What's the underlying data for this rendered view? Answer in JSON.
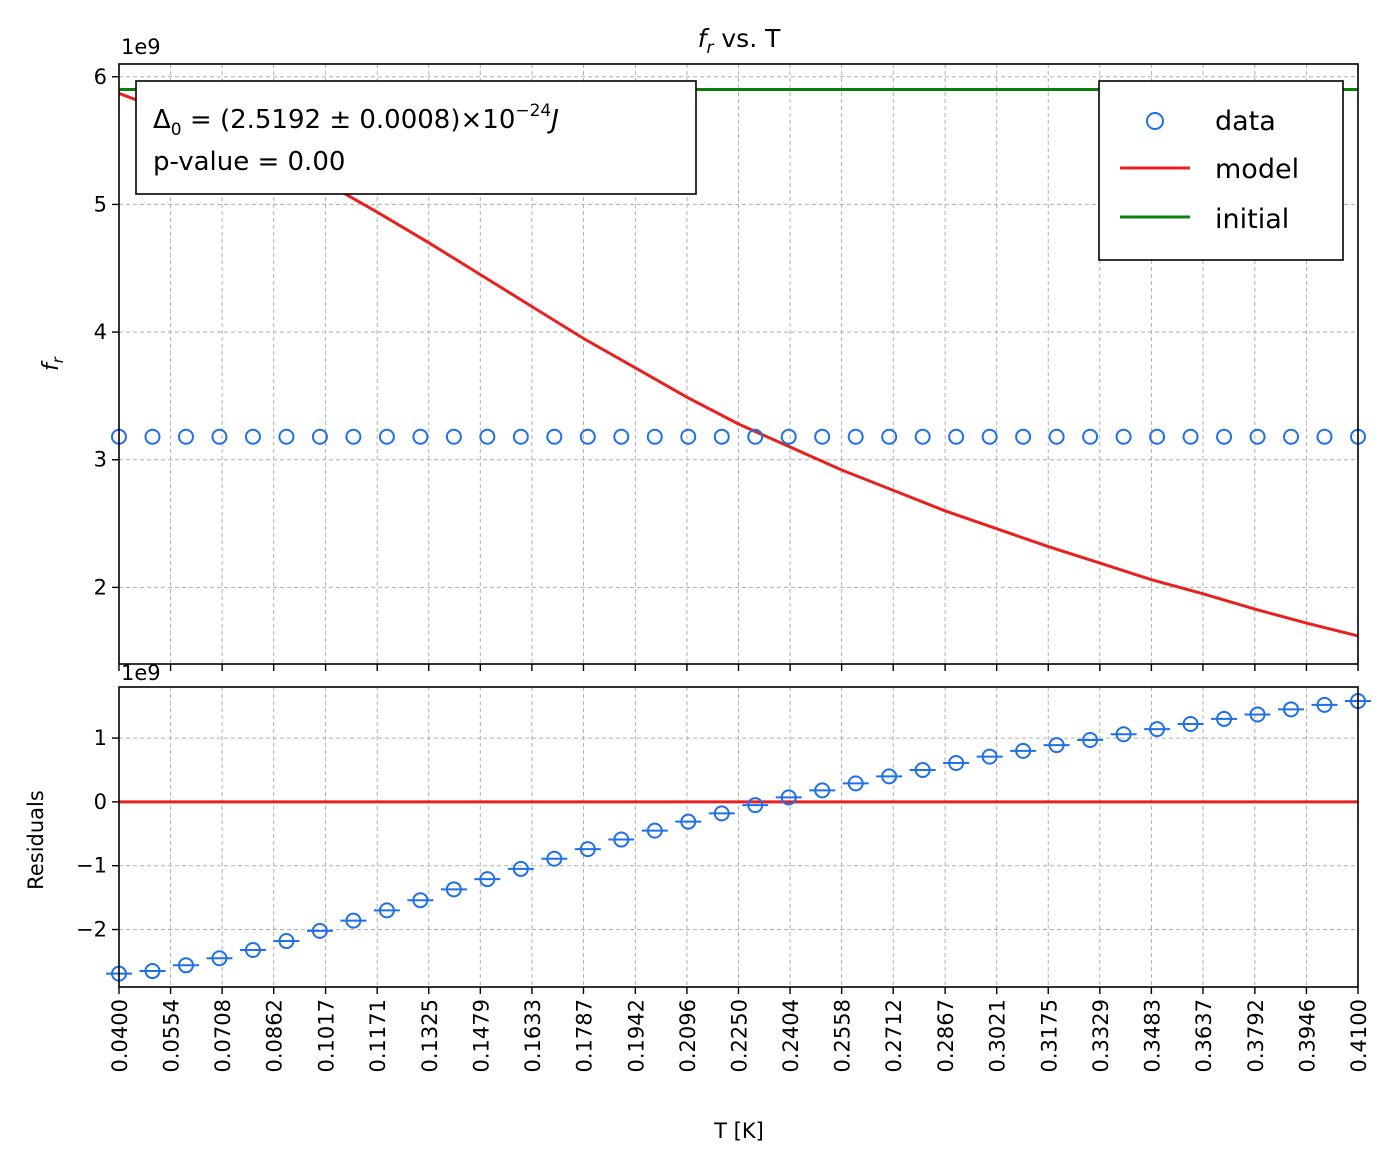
{
  "chart_data": [
    {
      "type": "scatter",
      "title_main": "f",
      "title_sub": "r",
      "title_rest": " vs. T",
      "ylabel_main": "f",
      "ylabel_sub": "r",
      "offset_label": "1e9",
      "ylim": [
        1.4,
        6.1
      ],
      "yticks": [
        2,
        3,
        4,
        5,
        6
      ],
      "grid": true,
      "legend_placement": "top-right",
      "legend": [
        "data",
        "model",
        "initial"
      ],
      "annotation": {
        "line1_symbol": "Δ",
        "line1_sub": "0",
        "line1_mid": " = (2.5192 ± 0.0008)×10",
        "line1_exp": "−24",
        "line1_unit": "J",
        "line2": "p-value = 0.00"
      },
      "series": [
        {
          "name": "data",
          "style": "hollow-circle",
          "color": "#1f6fe8",
          "constant_y": 3.18
        },
        {
          "name": "model",
          "style": "line",
          "color": "#e8211f",
          "y": [
            5.87,
            5.72,
            5.55,
            5.37,
            5.17,
            4.94,
            4.7,
            4.45,
            4.2,
            3.95,
            3.72,
            3.49,
            3.28,
            3.1,
            2.92,
            2.76,
            2.6,
            2.46,
            2.32,
            2.19,
            2.06,
            1.95,
            1.83,
            1.72,
            1.62
          ]
        },
        {
          "name": "initial",
          "style": "line",
          "color": "#0a7f0a",
          "constant_y": 5.9
        }
      ]
    },
    {
      "type": "scatter",
      "ylabel": "Residuals",
      "offset_label": "1e9",
      "xlabel": "T [K]",
      "xlim": [
        0.04,
        0.41
      ],
      "ylim": [
        -2.9,
        1.8
      ],
      "yticks": [
        -2,
        -1,
        0,
        1
      ],
      "ytick_labels": [
        "−2",
        "−1",
        "0",
        "1"
      ],
      "grid": true,
      "residuals": [
        -2.69,
        -2.65,
        -2.56,
        -2.45,
        -2.32,
        -2.18,
        -2.02,
        -1.86,
        -1.7,
        -1.54,
        -1.37,
        -1.21,
        -1.05,
        -0.89,
        -0.74,
        -0.59,
        -0.45,
        -0.31,
        -0.18,
        -0.05,
        0.07,
        0.18,
        0.29,
        0.4,
        0.5,
        0.61,
        0.71,
        0.8,
        0.89,
        0.97,
        1.06,
        1.14,
        1.22,
        1.3,
        1.37,
        1.45,
        1.52,
        1.58
      ],
      "zero_line_color": "#e8211f",
      "marker_color": "#1f6fe8",
      "xticks": [
        "0.0400",
        "0.0554",
        "0.0708",
        "0.0862",
        "0.1017",
        "0.1171",
        "0.1325",
        "0.1479",
        "0.1633",
        "0.1787",
        "0.1942",
        "0.2096",
        "0.2250",
        "0.2404",
        "0.2558",
        "0.2712",
        "0.2867",
        "0.3021",
        "0.3175",
        "0.3329",
        "0.3483",
        "0.3637",
        "0.3792",
        "0.3946",
        "0.4100"
      ]
    }
  ]
}
